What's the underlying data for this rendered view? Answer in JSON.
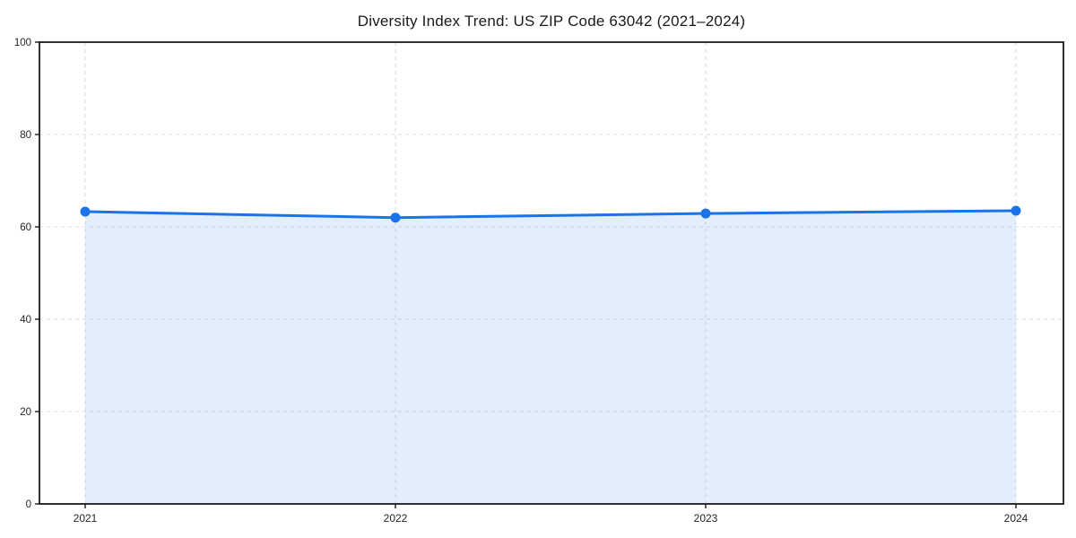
{
  "title": "Diversity Index Trend: US ZIP Code 63042 (2021–2024)",
  "chart_data": {
    "type": "line",
    "title": "Diversity Index Trend: US ZIP Code 63042 (2021–2024)",
    "x": [
      "2021",
      "2022",
      "2023",
      "2024"
    ],
    "series": [
      {
        "name": "Diversity Index",
        "values": [
          63.3,
          62.0,
          62.9,
          63.5
        ]
      }
    ],
    "xlabel": "",
    "ylabel": "",
    "ylim": [
      0,
      100
    ],
    "yticks": [
      0,
      20,
      40,
      60,
      80,
      100
    ],
    "grid": true,
    "grid_style": "dashed",
    "legend_position": "none",
    "area_fill": true,
    "marker": "circle",
    "colors": {
      "line": "#1a73e8",
      "marker": "#1a73e8",
      "area_fill": "rgba(26,115,232,0.12)",
      "gridline": "#dedede",
      "axis": "#1a1a1a",
      "tick_label": "#262626",
      "background": "#ffffff"
    }
  }
}
